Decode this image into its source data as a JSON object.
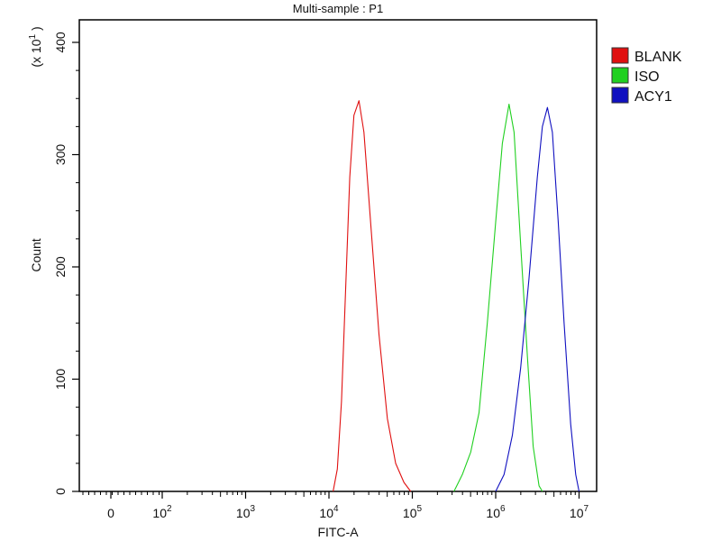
{
  "chart_data": {
    "type": "line",
    "title": "Multi-sample : P1",
    "xlabel": "FITC-A",
    "ylabel": "Count",
    "y_multiplier": "(x 10",
    "y_multiplier_exp": "1",
    "x_scale": "log",
    "xlim": [
      0,
      10000000
    ],
    "ylim": [
      0,
      400
    ],
    "x_ticks": [
      {
        "base": "0",
        "exp": ""
      },
      {
        "base": "10",
        "exp": "2"
      },
      {
        "base": "10",
        "exp": "3"
      },
      {
        "base": "10",
        "exp": "4"
      },
      {
        "base": "10",
        "exp": "5"
      },
      {
        "base": "10",
        "exp": "6"
      },
      {
        "base": "10",
        "exp": "7"
      }
    ],
    "y_ticks": [
      "0",
      "100",
      "200",
      "300",
      "400"
    ],
    "grid": false,
    "legend_position": "right",
    "series": [
      {
        "name": "BLANK",
        "color": "#e01010",
        "points": [
          [
            11220,
            0
          ],
          [
            12590,
            20
          ],
          [
            14125,
            80
          ],
          [
            15850,
            180
          ],
          [
            17780,
            280
          ],
          [
            19950,
            335
          ],
          [
            22900,
            348
          ],
          [
            26300,
            320
          ],
          [
            31620,
            240
          ],
          [
            39810,
            140
          ],
          [
            50120,
            65
          ],
          [
            63100,
            25
          ],
          [
            79430,
            8
          ],
          [
            95500,
            0
          ]
        ]
      },
      {
        "name": "ISO",
        "color": "#20d020",
        "points": [
          [
            316200,
            0
          ],
          [
            398100,
            15
          ],
          [
            501200,
            35
          ],
          [
            631000,
            70
          ],
          [
            794300,
            150
          ],
          [
            1000000,
            240
          ],
          [
            1202000,
            310
          ],
          [
            1445000,
            345
          ],
          [
            1660000,
            320
          ],
          [
            1995000,
            220
          ],
          [
            2399000,
            120
          ],
          [
            2818000,
            40
          ],
          [
            3311000,
            5
          ],
          [
            3631000,
            0
          ]
        ]
      },
      {
        "name": "ACY1",
        "color": "#1010c0",
        "points": [
          [
            1000000,
            0
          ],
          [
            1259000,
            15
          ],
          [
            1585000,
            50
          ],
          [
            1995000,
            110
          ],
          [
            2512000,
            190
          ],
          [
            3162000,
            280
          ],
          [
            3631000,
            325
          ],
          [
            4169000,
            342
          ],
          [
            4786000,
            320
          ],
          [
            5623000,
            240
          ],
          [
            6607000,
            150
          ],
          [
            7943000,
            60
          ],
          [
            9120000,
            15
          ],
          [
            10000000,
            0
          ]
        ]
      }
    ]
  }
}
